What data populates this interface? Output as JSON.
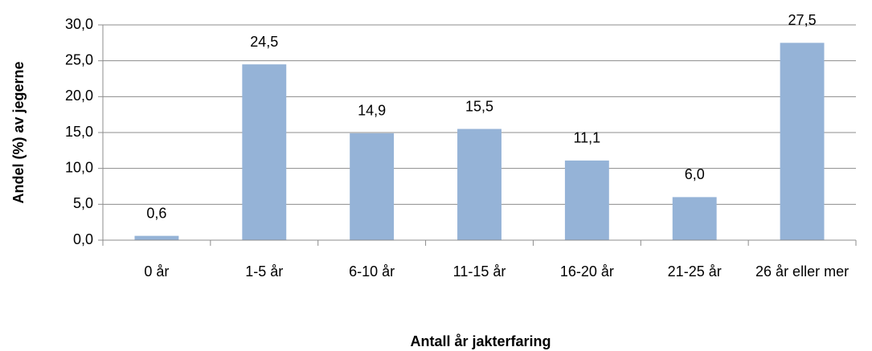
{
  "chart_data": {
    "type": "bar",
    "x_label": "Antall år jakterfaring",
    "y_label": "Andel (%) av jegerne",
    "categories": [
      "0 år",
      "1-5 år",
      "6-10 år",
      "11-15 år",
      "16-20 år",
      "21-25 år",
      "26 år eller mer"
    ],
    "values": [
      0.6,
      24.5,
      14.9,
      15.5,
      11.1,
      6.0,
      27.5
    ],
    "value_labels": [
      "0,6",
      "24,5",
      "14,9",
      "15,5",
      "11,1",
      "6,0",
      "27,5"
    ],
    "color": "#95b3d7",
    "ylim": [
      0,
      30
    ],
    "yticks": [
      {
        "value": 0,
        "label": "0,0"
      },
      {
        "value": 5,
        "label": "5,0"
      },
      {
        "value": 10,
        "label": "10,0"
      },
      {
        "value": 15,
        "label": "15,0"
      },
      {
        "value": 20,
        "label": "20,0"
      },
      {
        "value": 25,
        "label": "25,0"
      },
      {
        "value": 30,
        "label": "30,0"
      }
    ],
    "grid": true
  }
}
